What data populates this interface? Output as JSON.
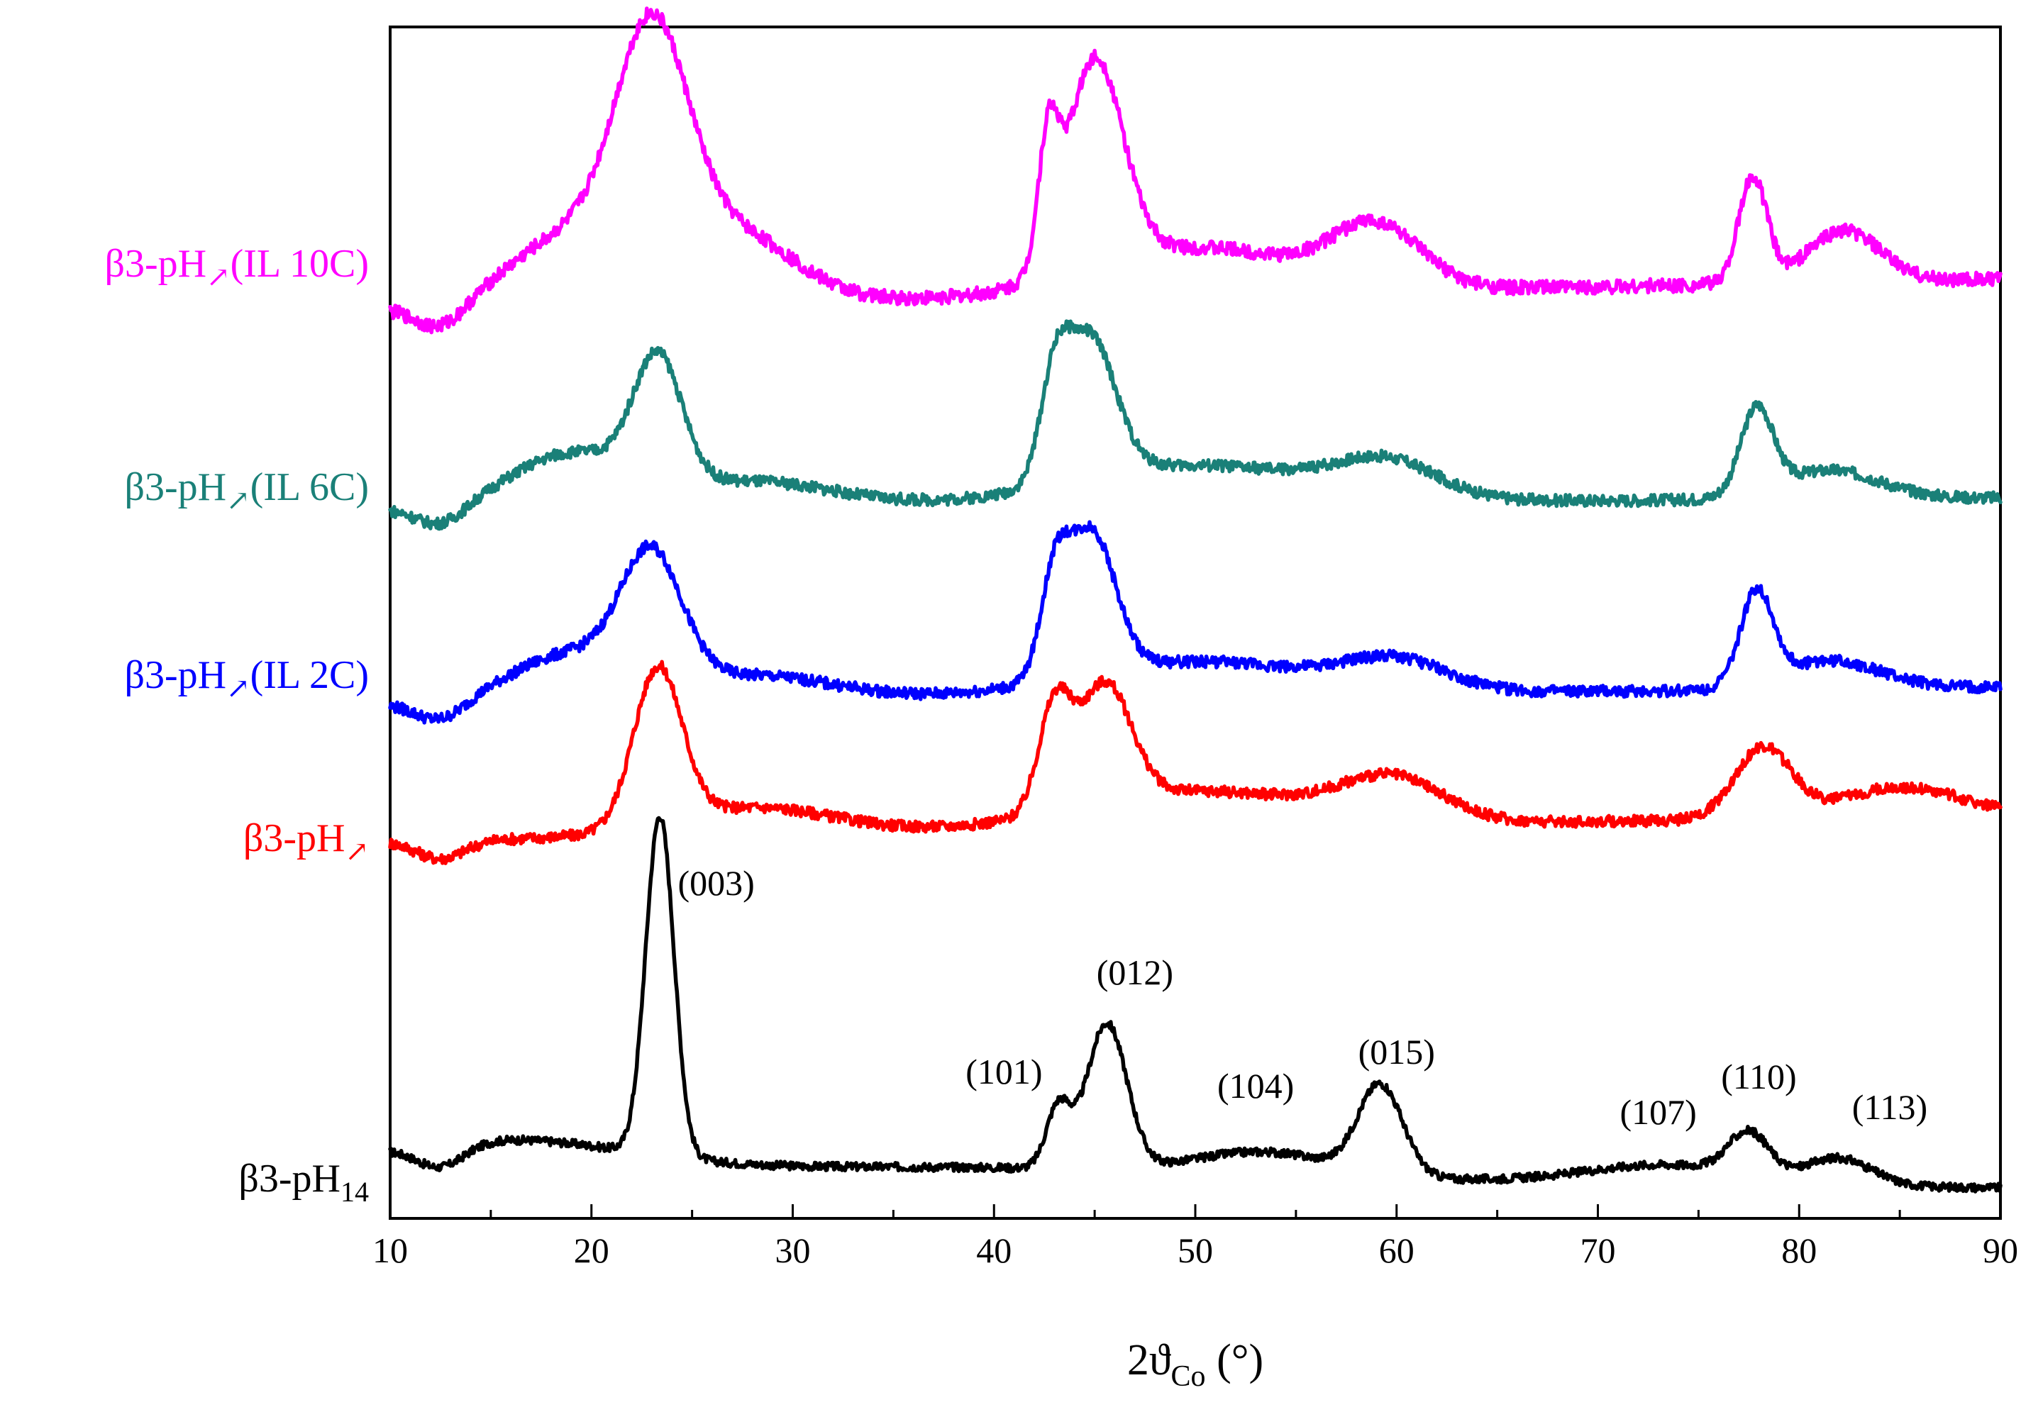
{
  "chart_data": {
    "type": "line",
    "xlabel": "2ϑ",
    "xlabel_sub": "Co",
    "xlabel_unit": " (°)",
    "xlim": [
      10,
      90
    ],
    "x_ticks": [
      "10",
      "20",
      "30",
      "40",
      "50",
      "60",
      "70",
      "80",
      "90"
    ],
    "y_ticks_shown": false,
    "grid": false,
    "series": [
      {
        "name": "β3-pH",
        "name_sub": "14",
        "color": "#000000",
        "peaks": [
          [
            16,
            1.2
          ],
          [
            23.4,
            14.5
          ],
          [
            40,
            0.3
          ],
          [
            43.2,
            2.6
          ],
          [
            45.6,
            6.2
          ],
          [
            53.5,
            1.0
          ],
          [
            59.2,
            3.8
          ],
          [
            73.5,
            0.8
          ],
          [
            77.5,
            1.8
          ],
          [
            82,
            1.1
          ]
        ],
        "widths": [
          6,
          0.7,
          10,
          0.6,
          1.0,
          3.5,
          1.1,
          4,
          1.0,
          1.6
        ],
        "baseline": [
          0.3,
          -0.6
        ]
      },
      {
        "name": "β3-pH",
        "name_sub": "↗",
        "color": "#ff0000",
        "peaks": [
          [
            23.3,
            8.5
          ],
          [
            28,
            1.5
          ],
          [
            43,
            5.5
          ],
          [
            45.5,
            6.5
          ],
          [
            50,
            2.0
          ],
          [
            59.8,
            2.2
          ],
          [
            78.2,
            3.8
          ],
          [
            85,
            1.6
          ]
        ],
        "widths": [
          1.2,
          4,
          0.8,
          1.3,
          6,
          2.5,
          1.4,
          3
        ],
        "baseline": [
          -0.8,
          0.6
        ]
      },
      {
        "name": "β3-pH",
        "name_sub": "↗",
        "name_suffix": "(IL 2C)",
        "color": "#0000ff",
        "peaks": [
          [
            23.0,
            6.5
          ],
          [
            19.0,
            2.5
          ],
          [
            28,
            1.3
          ],
          [
            43,
            4.5
          ],
          [
            44.8,
            7.5
          ],
          [
            50,
            1.8
          ],
          [
            60,
            1.5
          ],
          [
            77.9,
            4.8
          ],
          [
            81.5,
            1.5
          ]
        ],
        "widths": [
          1.5,
          3,
          4,
          0.7,
          1.2,
          6,
          2.5,
          0.8,
          2.5
        ],
        "baseline": [
          -0.5,
          0.4
        ]
      },
      {
        "name": "β3-pH",
        "name_sub": "↗",
        "name_suffix": "(IL 6C)",
        "color": "#1a8078",
        "peaks": [
          [
            23.3,
            6.5
          ],
          [
            19.0,
            2.8
          ],
          [
            28,
            1.3
          ],
          [
            43,
            4.2
          ],
          [
            44.7,
            7.5
          ],
          [
            50,
            2.0
          ],
          [
            59.5,
            1.8
          ],
          [
            77.9,
            4.4
          ],
          [
            81.5,
            1.5
          ]
        ],
        "widths": [
          1.2,
          3,
          4,
          0.7,
          1.3,
          6,
          2.5,
          0.8,
          2.5
        ],
        "baseline": [
          -0.3,
          0.3
        ]
      },
      {
        "name": "β3-pH",
        "name_sub": "↗",
        "name_suffix": "(IL 10C)",
        "color": "#ff00ff",
        "peaks": [
          [
            23.0,
            10.0
          ],
          [
            19.0,
            3.0
          ],
          [
            27,
            3.0
          ],
          [
            42.7,
            5.0
          ],
          [
            45.0,
            9.0
          ],
          [
            50,
            2.0
          ],
          [
            59.0,
            2.6
          ],
          [
            77.7,
            4.5
          ],
          [
            82.2,
            2.2
          ]
        ],
        "widths": [
          1.8,
          3,
          3,
          0.5,
          1.4,
          5,
          2.2,
          0.7,
          1.8
        ],
        "baseline": [
          -0.5,
          0.8
        ]
      }
    ],
    "annotations": [
      {
        "text": "(003)",
        "x": 26.2,
        "series": 0
      },
      {
        "text": "(101)",
        "x": 40.5,
        "series": 0
      },
      {
        "text": "(012)",
        "x": 47.0,
        "series": 0
      },
      {
        "text": "(104)",
        "x": 53.0,
        "series": 0
      },
      {
        "text": "(015)",
        "x": 60.0,
        "series": 0
      },
      {
        "text": "(107)",
        "x": 73.0,
        "series": 0
      },
      {
        "text": "(110)",
        "x": 78.0,
        "series": 0
      },
      {
        "text": "(113)",
        "x": 84.5,
        "series": 0
      }
    ]
  }
}
